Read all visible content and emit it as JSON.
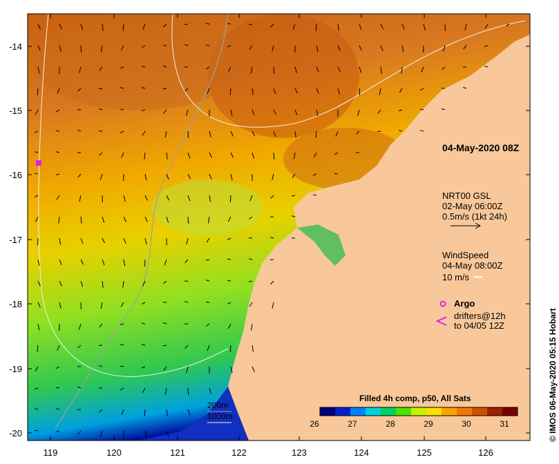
{
  "map": {
    "region": "North-West Australia coast",
    "timestamp_label": "04-May-2020 08Z",
    "lat_ticks": [
      "-14",
      "-15",
      "-16",
      "-17",
      "-18",
      "-19",
      "-20"
    ],
    "lon_ticks": [
      "119",
      "120",
      "121",
      "122",
      "123",
      "124",
      "125",
      "126"
    ]
  },
  "legend": {
    "currents_title": "NRT00 GSL",
    "currents_date": "02-May 06:00Z",
    "currents_scale": "0.5m/s (1kt 24h)",
    "wind_title": "WindSpeed",
    "wind_date": "04-May 08:00Z",
    "wind_scale": "10 m/s",
    "argo_label": "Argo",
    "drifters_line1": "drifters@12h",
    "drifters_line2": "to 04/05 12Z",
    "contour_200": "200m",
    "contour_1000": "1000m"
  },
  "colorbar": {
    "title": "Filled 4h comp, p50, All Sats",
    "ticks": [
      "26",
      "27",
      "28",
      "29",
      "30",
      "31"
    ],
    "colors": [
      "#00007a",
      "#0020d0",
      "#0080ff",
      "#00d0e0",
      "#00d060",
      "#50e000",
      "#c8f000",
      "#ffe000",
      "#ffa000",
      "#f07800",
      "#d05000",
      "#a02000",
      "#7a0000"
    ]
  },
  "credit": "© IMOS 06-May-2020 05:15 Hobart",
  "colors": {
    "land": "#f8c89a",
    "warm_sst": "#d87018",
    "mid_sst": "#f0b000",
    "cool_sst": "#40c840",
    "argo": "#e020e0"
  }
}
